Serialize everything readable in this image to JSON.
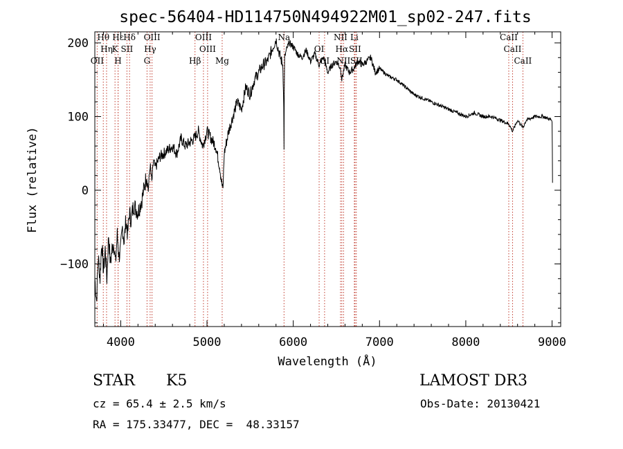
{
  "chart_data": {
    "type": "line",
    "title": "spec-56404-HD114750N494922M01_sp02-247.fits",
    "xlabel": "Wavelength (Å)",
    "ylabel": "Flux (relative)",
    "xlim": [
      3700,
      9100
    ],
    "ylim": [
      -185,
      215
    ],
    "xticks": [
      4000,
      5000,
      6000,
      7000,
      8000,
      9000
    ],
    "xtick_labels": [
      "4000",
      "5000",
      "6000",
      "7000",
      "8000",
      "9000"
    ],
    "yticks": [
      -100,
      0,
      100,
      200
    ],
    "ytick_labels": [
      "−100",
      "0",
      "100",
      "200"
    ],
    "series": [
      {
        "name": "spectrum",
        "x": [
          3700,
          3720,
          3740,
          3760,
          3780,
          3800,
          3820,
          3840,
          3860,
          3880,
          3900,
          3920,
          3940,
          3960,
          3980,
          4000,
          4020,
          4040,
          4060,
          4080,
          4100,
          4120,
          4150,
          4200,
          4250,
          4300,
          4320,
          4340,
          4360,
          4380,
          4400,
          4450,
          4500,
          4550,
          4600,
          4650,
          4700,
          4750,
          4800,
          4850,
          4900,
          4950,
          5000,
          5050,
          5100,
          5150,
          5170,
          5185,
          5200,
          5250,
          5300,
          5350,
          5400,
          5450,
          5500,
          5550,
          5600,
          5650,
          5700,
          5750,
          5800,
          5820,
          5850,
          5880,
          5890,
          5893,
          5896,
          5900,
          5920,
          5950,
          6000,
          6050,
          6100,
          6150,
          6200,
          6250,
          6300,
          6350,
          6400,
          6450,
          6500,
          6550,
          6563,
          6580,
          6600,
          6650,
          6700,
          6750,
          6800,
          6850,
          6900,
          6950,
          7000,
          7100,
          7200,
          7300,
          7400,
          7500,
          7600,
          7700,
          7800,
          7900,
          8000,
          8100,
          8200,
          8300,
          8400,
          8500,
          8542,
          8600,
          8662,
          8700,
          8800,
          8900,
          9000,
          9003,
          9005
        ],
        "y": [
          -120,
          -150,
          -90,
          -120,
          -70,
          -110,
          -80,
          -120,
          -60,
          -100,
          -80,
          -70,
          -100,
          -60,
          -90,
          -80,
          -50,
          -70,
          -40,
          -60,
          -30,
          -40,
          -20,
          -30,
          -10,
          20,
          0,
          35,
          10,
          40,
          30,
          45,
          50,
          55,
          60,
          50,
          70,
          60,
          65,
          70,
          80,
          60,
          80,
          70,
          60,
          30,
          10,
          0,
          50,
          80,
          100,
          120,
          110,
          140,
          130,
          150,
          160,
          170,
          175,
          190,
          205,
          195,
          180,
          170,
          110,
          60,
          130,
          180,
          190,
          200,
          195,
          185,
          180,
          190,
          175,
          185,
          170,
          180,
          160,
          170,
          175,
          165,
          150,
          160,
          170,
          160,
          165,
          175,
          170,
          175,
          180,
          160,
          165,
          155,
          150,
          140,
          130,
          125,
          120,
          115,
          110,
          105,
          100,
          105,
          100,
          100,
          95,
          90,
          80,
          95,
          85,
          95,
          100,
          100,
          95,
          55,
          10
        ]
      }
    ],
    "line_markers": [
      {
        "label": "Hθ",
        "wavelength": 3798
      },
      {
        "label": "Hη",
        "wavelength": 3836
      },
      {
        "label": "OII",
        "wavelength": 3727
      },
      {
        "label": "Hε",
        "wavelength": 3970
      },
      {
        "label": "K",
        "wavelength": 3934
      },
      {
        "label": "H",
        "wavelength": 3969
      },
      {
        "label": "Hδ",
        "wavelength": 4102
      },
      {
        "label": "SII",
        "wavelength": 4072
      },
      {
        "label": "G",
        "wavelength": 4305
      },
      {
        "label": "OIII",
        "wavelength": 4363
      },
      {
        "label": "Hγ",
        "wavelength": 4341
      },
      {
        "label": "Hβ",
        "wavelength": 4861
      },
      {
        "label": "OIII",
        "wavelength": 4959
      },
      {
        "label": "OIII",
        "wavelength": 5007
      },
      {
        "label": "Mg",
        "wavelength": 5176
      },
      {
        "label": "Na",
        "wavelength": 5893
      },
      {
        "label": "OI",
        "wavelength": 6300
      },
      {
        "label": "OI",
        "wavelength": 6363
      },
      {
        "label": "NII",
        "wavelength": 6548
      },
      {
        "label": "Hα",
        "wavelength": 6563
      },
      {
        "label": "NII",
        "wavelength": 6583
      },
      {
        "label": "Li",
        "wavelength": 6708
      },
      {
        "label": "SII",
        "wavelength": 6716
      },
      {
        "label": "SII",
        "wavelength": 6731
      },
      {
        "label": "CaII",
        "wavelength": 8498
      },
      {
        "label": "CaII",
        "wavelength": 8542
      },
      {
        "label": "CaII",
        "wavelength": 8662
      }
    ]
  },
  "info": {
    "class": "STAR",
    "subclass": "K5",
    "survey": "LAMOST DR3",
    "cz": "cz = 65.4 ± 2.5 km/s",
    "obs_date": "Obs-Date: 20130421",
    "coords": "RA = 175.33477, DEC =  48.33157"
  }
}
